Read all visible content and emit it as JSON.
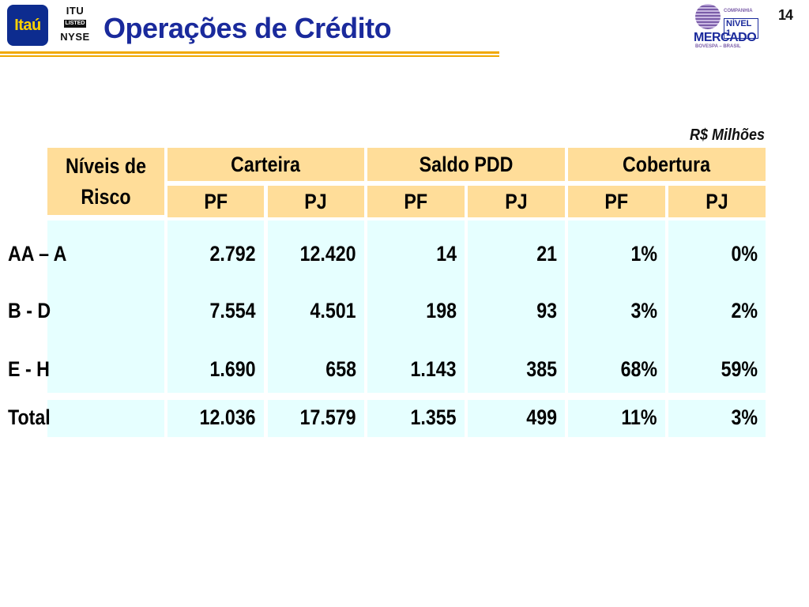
{
  "header": {
    "itau_logo": "Itaú",
    "nyse_logo": {
      "top": "ITU",
      "middle": "LISTED",
      "bottom": "NYSE"
    },
    "title": "Operações de Crédito",
    "mercado_logo": {
      "companhia": "COMPANHIA",
      "nivel": "NÍVEL 1",
      "mercado": "MERCADO",
      "bovespa": "BOVESPA – BRASIL"
    },
    "slide_number": "14",
    "accent_color": "#f0a800",
    "title_color": "#1a2a9c"
  },
  "table": {
    "currency_note": "R$ Milhões",
    "row_header": "Níveis de Risco",
    "groups": [
      "Carteira",
      "Saldo PDD",
      "Cobertura"
    ],
    "subheaders": [
      "PF",
      "PJ",
      "PF",
      "PJ",
      "PF",
      "PJ"
    ],
    "rows": [
      {
        "label": "AA – A",
        "values": [
          "2.792",
          "12.420",
          "14",
          "21",
          "1%",
          "0%"
        ]
      },
      {
        "label": "B - D",
        "values": [
          "7.554",
          "4.501",
          "198",
          "93",
          "3%",
          "2%"
        ]
      },
      {
        "label": "E - H",
        "values": [
          "1.690",
          "658",
          "1.143",
          "385",
          "68%",
          "59%"
        ]
      }
    ],
    "total": {
      "label": "Total",
      "values": [
        "12.036",
        "17.579",
        "1.355",
        "499",
        "11%",
        "3%"
      ]
    },
    "header_color": "#ffdd99",
    "body_color": "#e6ffff"
  }
}
